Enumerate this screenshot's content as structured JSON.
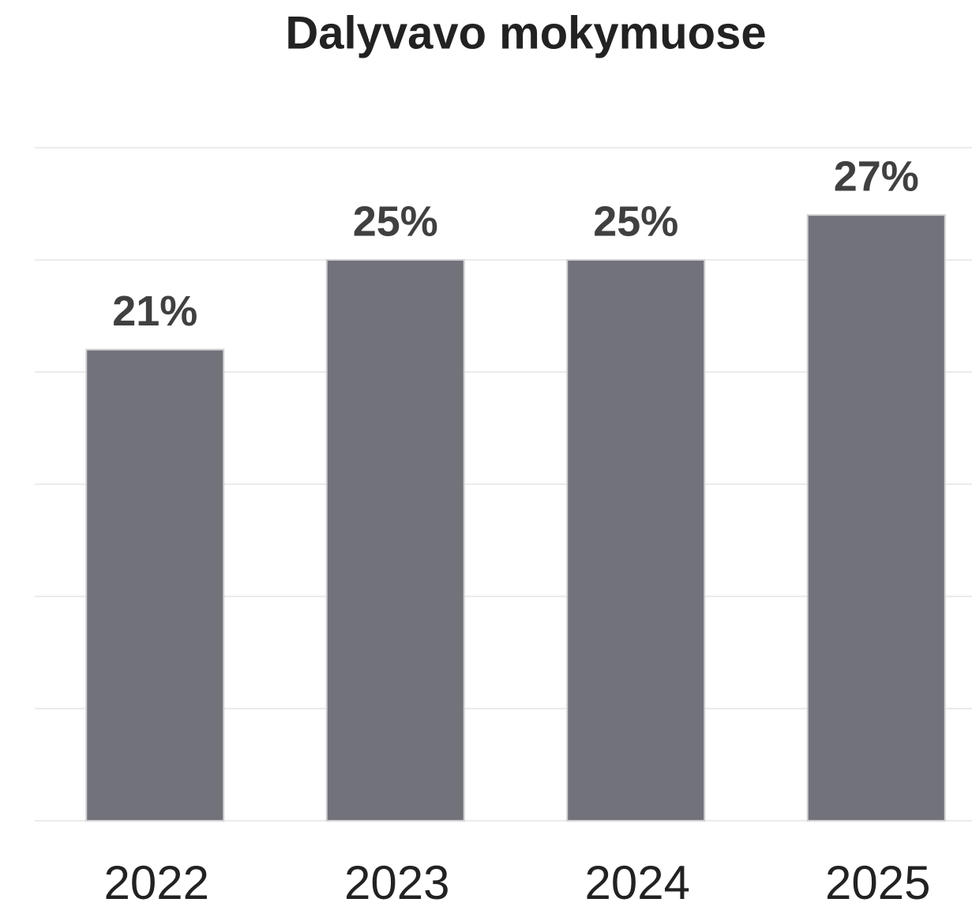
{
  "chart_data": {
    "type": "bar",
    "title": "Dalyvavo mokymuose",
    "categories": [
      "2022",
      "2023",
      "2024",
      "2025"
    ],
    "values": [
      21,
      25,
      25,
      27
    ],
    "value_labels": [
      "21%",
      "25%",
      "25%",
      "27%"
    ],
    "color": "#72727b",
    "ylim": [
      0,
      30
    ],
    "yticks": [
      0,
      5,
      10,
      15,
      20,
      25,
      30
    ],
    "grid": true
  }
}
